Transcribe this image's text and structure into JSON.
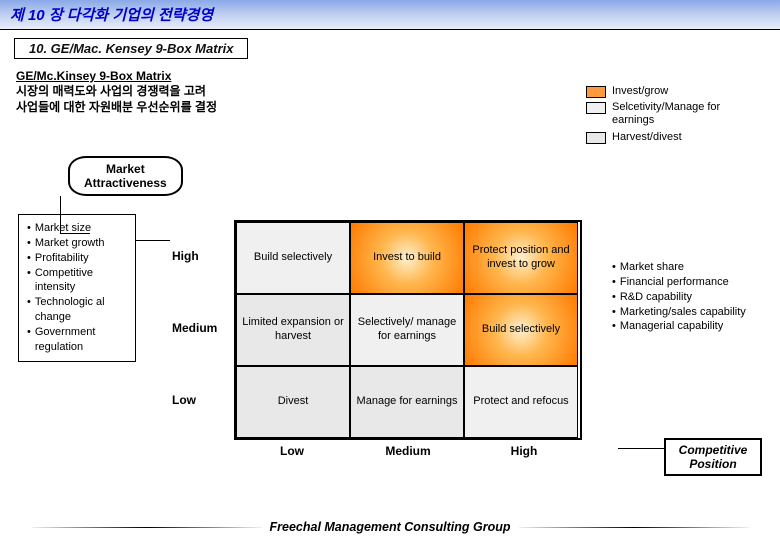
{
  "chapter": "제 10 장    다각화 기업의 전략경영",
  "section_title": "10. GE/Mac. Kensey 9-Box Matrix",
  "subhead": "GE/Mc.Kinsey 9-Box Matrix",
  "desc_line1": "시장의 매력도와 사업의 경쟁력을 고려",
  "desc_line2": "사업들에 대한 자원배분 우선순위를 결정",
  "legend": [
    {
      "label": "Invest/grow",
      "color": "#ff9a3c"
    },
    {
      "label": "Selcetivity/Manage for earnings",
      "color": "#f0f0f0"
    },
    {
      "label": "Harvest/divest",
      "color": "#e8e8e8"
    }
  ],
  "axis_y_title_1": "Market",
  "axis_y_title_2": "Attractiveness",
  "left_factors": [
    "Market size",
    "Market growth",
    "Profitability",
    "Competitive intensity",
    "Technologic al change",
    "Government regulation"
  ],
  "row_labels": [
    "High",
    "Medium",
    "Low"
  ],
  "col_labels": [
    "Low",
    "Medium",
    "High"
  ],
  "cells": {
    "r0c0": {
      "text": "Build selectively",
      "cat": "select"
    },
    "r0c1": {
      "text": "Invest to build",
      "cat": "invest"
    },
    "r0c2": {
      "text": "Protect position and invest to grow",
      "cat": "invest"
    },
    "r1c0": {
      "text": "Limited expansion or harvest",
      "cat": "harvest"
    },
    "r1c1": {
      "text": "Selectively/ manage for earnings",
      "cat": "select"
    },
    "r1c2": {
      "text": "Build selectively",
      "cat": "invest"
    },
    "r2c0": {
      "text": "Divest",
      "cat": "harvest"
    },
    "r2c1": {
      "text": "Manage for earnings",
      "cat": "harvest"
    },
    "r2c2": {
      "text": "Protect and refocus",
      "cat": "select"
    }
  },
  "right_factors": [
    "Market share",
    "Financial performance",
    "R&D capability",
    "Marketing/sales capability",
    "Managerial capability"
  ],
  "axis_x_title_1": "Competitive",
  "axis_x_title_2": "Position",
  "footer": "Freechal Management Consulting Group",
  "colors": {
    "invest_gradient_inner": "#fff0d0",
    "invest_gradient_mid": "#ffb64d",
    "invest_gradient_outer": "#ff7a00",
    "select_bg": "#f0f0f0",
    "harvest_bg": "#e8e8e8"
  }
}
